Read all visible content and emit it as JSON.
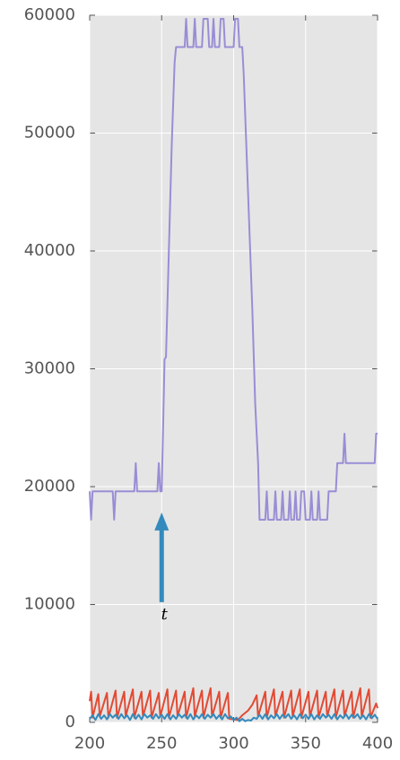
{
  "chart_data": {
    "type": "line",
    "xlim": [
      200,
      400
    ],
    "xticks": [
      200,
      250,
      300,
      350,
      400
    ],
    "ylim": [
      0,
      60000
    ],
    "yticks": [
      0,
      10000,
      20000,
      30000,
      40000,
      50000,
      60000
    ],
    "grid": true,
    "series": [
      {
        "color": "#988ed5",
        "x": [
          200,
          201,
          202,
          216,
          217,
          218,
          231,
          232,
          233,
          247,
          248,
          249,
          250,
          251,
          252,
          253,
          255,
          257,
          259,
          260,
          266,
          267,
          268,
          272,
          273,
          274,
          278,
          279,
          282,
          283,
          285,
          286,
          287,
          290,
          291,
          293,
          294,
          300,
          301,
          303,
          304,
          306,
          307,
          310,
          313,
          315,
          317,
          318,
          322,
          323,
          324,
          328,
          329,
          330,
          333,
          334,
          335,
          338,
          339,
          340,
          342,
          343,
          344,
          346,
          347,
          349,
          350,
          353,
          354,
          355,
          358,
          359,
          360,
          365,
          366,
          371,
          372,
          376,
          377,
          378,
          398,
          399,
          400
        ],
        "values": [
          19600,
          17200,
          19600,
          19600,
          17200,
          19600,
          19600,
          22000,
          19600,
          19600,
          22000,
          19600,
          19600,
          25000,
          30800,
          31000,
          40000,
          49000,
          56000,
          57300,
          57300,
          59700,
          57300,
          57300,
          59700,
          57300,
          57300,
          59700,
          59700,
          57300,
          57300,
          59700,
          57300,
          57300,
          59700,
          59700,
          57300,
          57300,
          59700,
          59700,
          57300,
          57300,
          55000,
          45000,
          35000,
          27000,
          22000,
          17200,
          17200,
          19600,
          17200,
          17200,
          19600,
          17200,
          17200,
          19600,
          17200,
          17200,
          19600,
          17200,
          17200,
          19600,
          17200,
          17200,
          19600,
          19600,
          17200,
          17200,
          19600,
          17200,
          17200,
          19600,
          17200,
          17200,
          19600,
          19600,
          22000,
          22000,
          24500,
          22000,
          22000,
          24500,
          24500
        ]
      },
      {
        "color": "#e24a33",
        "x": [
          200,
          201,
          202,
          206,
          207,
          212,
          213,
          218,
          219,
          224,
          225,
          230,
          231,
          236,
          237,
          242,
          243,
          248,
          249,
          254,
          255,
          260,
          261,
          266,
          267,
          272,
          273,
          278,
          279,
          284,
          285,
          290,
          291,
          296,
          297,
          303,
          306,
          310,
          313,
          316,
          317,
          322,
          323,
          328,
          329,
          334,
          335,
          340,
          341,
          346,
          347,
          352,
          353,
          358,
          359,
          364,
          365,
          370,
          371,
          376,
          377,
          382,
          383,
          388,
          389,
          394,
          395,
          399,
          400
        ],
        "values": [
          1800,
          2600,
          400,
          2400,
          500,
          2500,
          400,
          2700,
          400,
          2600,
          500,
          2800,
          400,
          2600,
          500,
          2700,
          400,
          2500,
          500,
          2800,
          400,
          2700,
          500,
          2600,
          400,
          2900,
          500,
          2700,
          400,
          2900,
          500,
          2600,
          400,
          2500,
          300,
          200,
          600,
          1000,
          1500,
          2300,
          500,
          2600,
          400,
          2800,
          500,
          2600,
          400,
          2700,
          500,
          2800,
          400,
          2600,
          500,
          2700,
          400,
          2600,
          500,
          2800,
          400,
          2700,
          500,
          2600,
          400,
          2900,
          500,
          2800,
          400,
          1600,
          1200
        ]
      },
      {
        "color": "#348abd",
        "x": [
          200,
          202,
          204,
          206,
          208,
          210,
          212,
          214,
          216,
          218,
          220,
          222,
          224,
          226,
          228,
          230,
          232,
          234,
          236,
          238,
          240,
          242,
          244,
          246,
          248,
          250,
          252,
          254,
          256,
          258,
          260,
          262,
          264,
          266,
          268,
          270,
          272,
          274,
          276,
          278,
          280,
          282,
          284,
          286,
          288,
          290,
          292,
          294,
          296,
          298,
          300,
          302,
          304,
          306,
          308,
          310,
          312,
          314,
          316,
          318,
          320,
          322,
          324,
          326,
          328,
          330,
          332,
          334,
          336,
          338,
          340,
          342,
          344,
          346,
          348,
          350,
          352,
          354,
          356,
          358,
          360,
          362,
          364,
          366,
          368,
          370,
          372,
          374,
          376,
          378,
          380,
          382,
          384,
          386,
          388,
          390,
          392,
          394,
          396,
          398,
          400
        ],
        "values": [
          300,
          600,
          200,
          700,
          300,
          600,
          250,
          700,
          400,
          650,
          300,
          700,
          350,
          600,
          200,
          700,
          300,
          650,
          250,
          700,
          400,
          600,
          300,
          700,
          350,
          650,
          300,
          700,
          250,
          600,
          300,
          700,
          400,
          650,
          300,
          700,
          250,
          600,
          350,
          700,
          300,
          650,
          400,
          700,
          300,
          600,
          250,
          700,
          350,
          500,
          200,
          400,
          100,
          300,
          100,
          200,
          150,
          400,
          300,
          650,
          300,
          700,
          250,
          600,
          350,
          700,
          300,
          650,
          400,
          700,
          300,
          600,
          250,
          700,
          350,
          650,
          300,
          700,
          250,
          600,
          300,
          700,
          400,
          650,
          300,
          700,
          250,
          600,
          350,
          700,
          300,
          650,
          400,
          700,
          300,
          600,
          250,
          700,
          350,
          650,
          300
        ]
      }
    ],
    "annotations": [
      {
        "text": "t",
        "x": 250,
        "y": 17800
      }
    ]
  }
}
